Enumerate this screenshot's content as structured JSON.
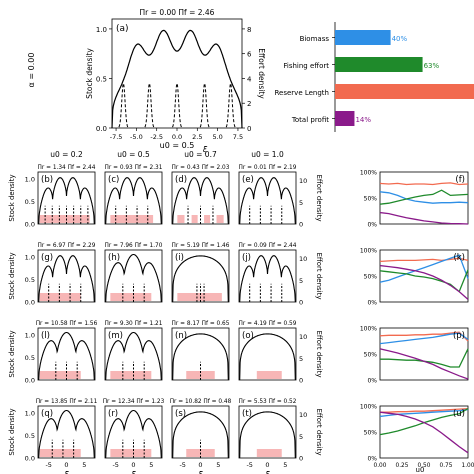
{
  "chart_data": {
    "type": "line",
    "figure": {
      "ylabel_stock": "Stock density",
      "ylabel_effort": "Effort density",
      "xlabel": "ξ",
      "alpha_label": "α = 0.00",
      "u0_bottom_label": "u0",
      "u0_axis_ticks": [
        "0.00",
        "0.25",
        "0.50",
        "0.75",
        "1.00"
      ],
      "pct_ticks": [
        "0%",
        "50%",
        "100%"
      ],
      "stock_ticks": [
        "0.0",
        "0.5",
        "1.0"
      ],
      "effort_ticks_big": [
        "0",
        "2",
        "4",
        "6",
        "8"
      ],
      "effort_ticks_small": [
        "0",
        "5",
        "10"
      ],
      "x_ticks_big": [
        "-7.5",
        "-5.0",
        "-2.5",
        "0.0",
        "2.5",
        "5.0",
        "7.5"
      ],
      "x_ticks_small": [
        "-5",
        "0",
        "5"
      ]
    },
    "panel_a": {
      "label": "(a)",
      "u0_label": "u0 = 0.5",
      "pi_label": "Πr = 0.00   Πf = 2.46",
      "x_range": [
        -8,
        8
      ],
      "stock_peaks": [
        -5.0,
        -1.7,
        1.7,
        5.0
      ],
      "effort_peaks": [
        -6.6,
        -3.4,
        0.0,
        3.4,
        6.6
      ]
    },
    "bars": {
      "categories": [
        "Biomass",
        "Fishing effort",
        "Reserve Length",
        "Total profit"
      ],
      "values": [
        40,
        63,
        100,
        14
      ],
      "labels": [
        "40%",
        "63%",
        "",
        "14%"
      ],
      "colors": [
        "#2e8fe6",
        "#1f8a2b",
        "#f26a4f",
        "#8a1a8a"
      ]
    },
    "column_headers": [
      "u0 = 0.2",
      "u0 = 0.5",
      "u0 = 0.7",
      "u0 = 1.0"
    ],
    "small_panels": [
      [
        {
          "label": "(b)",
          "pi": "Πr = 1.34  Πf = 2.44",
          "stock_peaks": 4,
          "reserve": [
            [
              -7.5,
              6.5
            ]
          ],
          "effort": [
            -6,
            -4,
            -2,
            0,
            2,
            4,
            6
          ]
        },
        {
          "label": "(c)",
          "pi": "Πr = 0.93  Πf = 2.31",
          "stock_peaks": 4,
          "reserve": [
            [
              -6.5,
              5.5
            ]
          ],
          "effort": [
            -5,
            -2,
            1,
            4
          ]
        },
        {
          "label": "(d)",
          "pi": "Πr = 0.43  Πf = 2.03",
          "stock_peaks": 4,
          "reserve": [
            [
              -6.5,
              -4.5
            ],
            [
              -2.5,
              -0.8
            ],
            [
              1.0,
              2.7
            ],
            [
              4.5,
              6.5
            ]
          ],
          "effort": [
            -3.5,
            0,
            3.5
          ]
        },
        {
          "label": "(e)",
          "pi": "Πr = 0.01  Πf = 2.19",
          "stock_peaks": 4,
          "reserve": [],
          "effort": [
            -5,
            -2,
            1,
            4
          ]
        }
      ],
      [
        {
          "label": "(g)",
          "pi": "Πr = 6.97  Πf = 2.29",
          "stock_peaks": 4,
          "reserve": [
            [
              -7.5,
              4
            ]
          ],
          "effort": [
            -5,
            -2,
            1,
            4
          ]
        },
        {
          "label": "(h)",
          "pi": "Πr = 7.96  Πf = 1.70",
          "stock_peaks": 3,
          "reserve": [
            [
              -6.5,
              5
            ]
          ],
          "effort": [
            -3,
            0,
            3
          ]
        },
        {
          "label": "(i)",
          "pi": "Πr = 5.19  Πf = 1.46",
          "stock_peaks": 1,
          "reserve": [
            [
              -6.5,
              6
            ]
          ],
          "effort": [
            -1,
            0,
            1
          ]
        },
        {
          "label": "(j)",
          "pi": "Πr = 0.09  Πf = 2.44",
          "stock_peaks": 4,
          "reserve": [],
          "effort": [
            -5,
            -2,
            1,
            4
          ]
        }
      ],
      [
        {
          "label": "(l)",
          "pi": "Πr = 10.58  Πf = 1.56",
          "stock_peaks": 3,
          "reserve": [
            [
              -7.5,
              4
            ]
          ],
          "effort": [
            -3,
            0,
            3
          ]
        },
        {
          "label": "(m)",
          "pi": "Πr = 9.30  Πf = 1.21",
          "stock_peaks": 3,
          "reserve": [
            [
              -6.5,
              5
            ]
          ],
          "effort": [
            -3,
            0,
            3
          ]
        },
        {
          "label": "(n)",
          "pi": "Πr = 8.17  Πf = 0.65",
          "stock_peaks": 1,
          "reserve": [
            [
              -4,
              4
            ]
          ],
          "effort": [
            0
          ]
        },
        {
          "label": "(o)",
          "pi": "Πr = 4.19  Πf = 0.59",
          "stock_peaks": 1,
          "reserve": [
            [
              -3,
              4
            ]
          ],
          "effort": []
        }
      ],
      [
        {
          "label": "(q)",
          "pi": "Πr = 13.85  Πf = 2.11",
          "stock_peaks": 3,
          "reserve": [
            [
              -7.5,
              4
            ]
          ],
          "effort": [
            -4,
            -1,
            2
          ]
        },
        {
          "label": "(r)",
          "pi": "Πr = 12.34  Πf = 1.23",
          "stock_peaks": 3,
          "reserve": [
            [
              -6.5,
              5
            ]
          ],
          "effort": [
            -3,
            0,
            3
          ]
        },
        {
          "label": "(s)",
          "pi": "Πr = 10.82  Πf = 0.48",
          "stock_peaks": 1,
          "reserve": [
            [
              -4,
              4
            ]
          ],
          "effort": [
            0
          ]
        },
        {
          "label": "(t)",
          "pi": "Πr = 5.53  Πf = 0.52",
          "stock_peaks": 1,
          "reserve": [
            [
              -3,
              4
            ]
          ],
          "effort": []
        }
      ]
    ],
    "right_panels": [
      {
        "label": "(f)",
        "x": [
          0,
          0.1,
          0.2,
          0.3,
          0.4,
          0.5,
          0.6,
          0.7,
          0.8,
          0.9,
          1.0
        ],
        "series": [
          {
            "color": "#f26a4f",
            "values": [
              78,
              77,
              78,
              76,
              77,
              77,
              76,
              78,
              79,
              76,
              77
            ]
          },
          {
            "color": "#2e8fe6",
            "values": [
              62,
              60,
              55,
              48,
              44,
              42,
              40,
              41,
              41,
              42,
              41
            ]
          },
          {
            "color": "#1f8a2b",
            "values": [
              38,
              40,
              44,
              48,
              52,
              55,
              57,
              65,
              55,
              56,
              57
            ]
          },
          {
            "color": "#8a1a8a",
            "values": [
              22,
              20,
              16,
              12,
              9,
              6,
              4,
              2,
              1,
              0.5,
              0
            ]
          }
        ]
      },
      {
        "label": "(k)",
        "x": [
          0,
          0.1,
          0.2,
          0.3,
          0.4,
          0.5,
          0.6,
          0.7,
          0.8,
          0.9,
          1.0
        ],
        "series": [
          {
            "color": "#f26a4f",
            "values": [
              78,
              79,
              80,
              80,
              80,
              81,
              82,
              80,
              82,
              84,
              80
            ]
          },
          {
            "color": "#2e8fe6",
            "values": [
              38,
              42,
              48,
              54,
              60,
              66,
              72,
              78,
              84,
              90,
              45
            ]
          },
          {
            "color": "#1f8a2b",
            "values": [
              60,
              58,
              56,
              54,
              50,
              48,
              45,
              40,
              34,
              20,
              62
            ]
          },
          {
            "color": "#8a1a8a",
            "values": [
              70,
              68,
              66,
              63,
              60,
              56,
              50,
              42,
              32,
              20,
              5
            ]
          }
        ]
      },
      {
        "label": "(p)",
        "x": [
          0,
          0.1,
          0.2,
          0.3,
          0.4,
          0.5,
          0.6,
          0.7,
          0.8,
          0.9,
          1.0
        ],
        "series": [
          {
            "color": "#f26a4f",
            "values": [
              85,
              86,
              86,
              86,
              87,
              87,
              88,
              88,
              90,
              92,
              75
            ]
          },
          {
            "color": "#2e8fe6",
            "values": [
              70,
              72,
              74,
              76,
              78,
              80,
              82,
              85,
              88,
              90,
              78
            ]
          },
          {
            "color": "#1f8a2b",
            "values": [
              40,
              40,
              39,
              38,
              38,
              36,
              34,
              30,
              25,
              25,
              60
            ]
          },
          {
            "color": "#8a1a8a",
            "values": [
              60,
              56,
              52,
              47,
              42,
              36,
              30,
              22,
              15,
              8,
              2
            ]
          }
        ]
      },
      {
        "label": "(u)",
        "x": [
          0,
          0.1,
          0.2,
          0.3,
          0.4,
          0.5,
          0.6,
          0.7,
          0.8,
          0.9,
          1.0
        ],
        "series": [
          {
            "color": "#f26a4f",
            "values": [
              88,
              88,
              89,
              89,
              90,
              90,
              91,
              92,
              93,
              94,
              95
            ]
          },
          {
            "color": "#2e8fe6",
            "values": [
              80,
              82,
              84,
              85,
              86,
              87,
              88,
              89,
              90,
              91,
              93
            ]
          },
          {
            "color": "#1f8a2b",
            "values": [
              45,
              48,
              52,
              57,
              62,
              68,
              73,
              78,
              82,
              85,
              95
            ]
          },
          {
            "color": "#8a1a8a",
            "values": [
              88,
              86,
              84,
              80,
              75,
              68,
              60,
              48,
              35,
              22,
              10
            ]
          }
        ]
      }
    ]
  }
}
